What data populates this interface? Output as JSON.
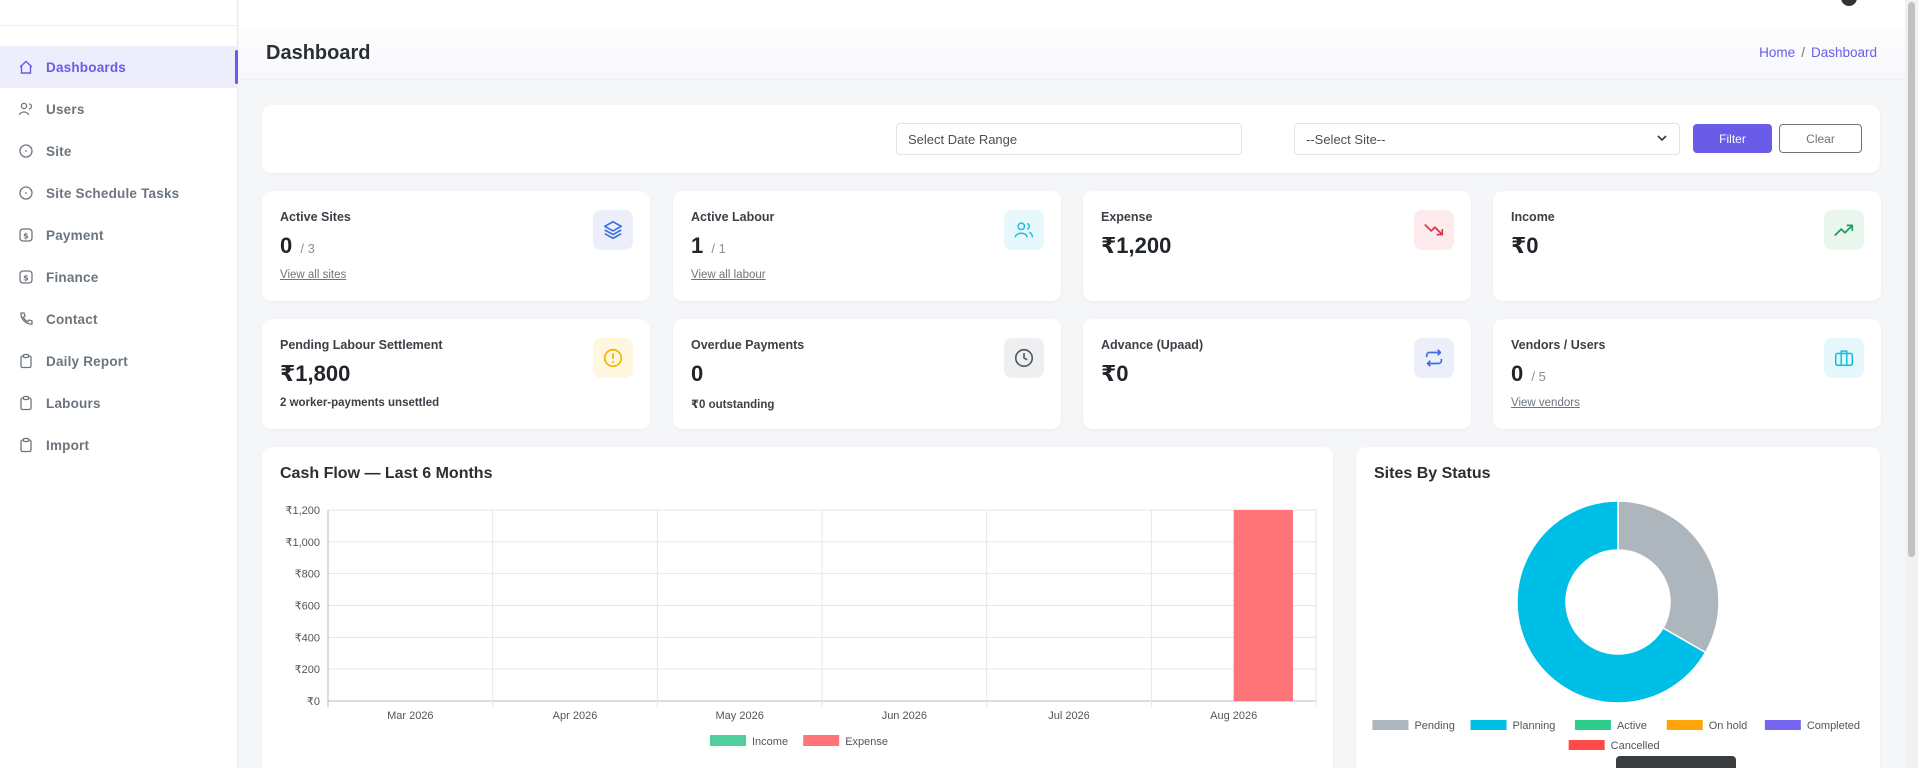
{
  "sidebar": {
    "items": [
      {
        "label": "Dashboards",
        "icon": "home-icon",
        "active": true
      },
      {
        "label": "Users",
        "icon": "users-icon"
      },
      {
        "label": "Site",
        "icon": "circle-icon"
      },
      {
        "label": "Site Schedule Tasks",
        "icon": "circle-icon"
      },
      {
        "label": "Payment",
        "icon": "dollar-icon"
      },
      {
        "label": "Finance",
        "icon": "dollar-icon"
      },
      {
        "label": "Contact",
        "icon": "phone-icon"
      },
      {
        "label": "Daily Report",
        "icon": "clipboard-icon"
      },
      {
        "label": "Labours",
        "icon": "clipboard-icon"
      },
      {
        "label": "Import",
        "icon": "clipboard-icon"
      }
    ]
  },
  "header": {
    "title": "Dashboard",
    "breadcrumb": {
      "home": "Home",
      "separator": "/",
      "current": "Dashboard"
    }
  },
  "filters": {
    "date_placeholder": "Select Date Range",
    "site_selected": "--Select Site--",
    "filter_label": "Filter",
    "clear_label": "Clear"
  },
  "stats": [
    {
      "label": "Active Sites",
      "value": "0",
      "of": "/ 3",
      "link": "View all sites",
      "icon": "layers-icon",
      "accent": "#3d6fdb",
      "bg": "#eceefa"
    },
    {
      "label": "Active Labour",
      "value": "1",
      "of": "/ 1",
      "link": "View all labour",
      "icon": "people-icon",
      "accent": "#1bbfe0",
      "bg": "#e6f8fc"
    },
    {
      "label": "Expense",
      "value": "₹1,200",
      "icon": "trending-down-icon",
      "accent": "#e0344b",
      "bg": "#fdeaec"
    },
    {
      "label": "Income",
      "value": "₹0",
      "icon": "trending-up-icon",
      "accent": "#1e9a5c",
      "bg": "#e8f6ee"
    },
    {
      "label": "Pending Labour Settlement",
      "value": "₹1,800",
      "sub": "2 worker-payments unsettled",
      "icon": "alert-circle-icon",
      "accent": "#f0b400",
      "bg": "#fff6e0"
    },
    {
      "label": "Overdue Payments",
      "value": "0",
      "sub": "₹0 outstanding",
      "icon": "clock-icon",
      "accent": "#555b61",
      "bg": "#eeeff1"
    },
    {
      "label": "Advance (Upaad)",
      "value": "₹0",
      "icon": "repeat-icon",
      "accent": "#3d6fdb",
      "bg": "#eceefa"
    },
    {
      "label": "Vendors / Users",
      "value": "0",
      "of": "/ 5",
      "link": "View vendors",
      "icon": "briefcase-icon",
      "accent": "#1bbfe0",
      "bg": "#e6f8fc"
    }
  ],
  "charts": {
    "cash_flow_title": "Cash Flow — Last 6 Months",
    "status_title": "Sites By Status"
  },
  "chart_data": [
    {
      "type": "bar",
      "title": "Cash Flow — Last 6 Months",
      "categories": [
        "Mar 2026",
        "Apr 2026",
        "May 2026",
        "Jun 2026",
        "Jul 2026",
        "Aug 2026"
      ],
      "series": [
        {
          "name": "Income",
          "values": [
            0,
            0,
            0,
            0,
            0,
            0
          ],
          "color": "#4fcf9e"
        },
        {
          "name": "Expense",
          "values": [
            0,
            0,
            0,
            0,
            0,
            1200
          ],
          "color": "#ff7478"
        }
      ],
      "ylim": [
        0,
        1200
      ],
      "yticks": [
        "₹0",
        "₹200",
        "₹400",
        "₹600",
        "₹800",
        "₹1,000",
        "₹1,200"
      ],
      "ytick_values": [
        0,
        200,
        400,
        600,
        800,
        1000,
        1200
      ],
      "grid": true,
      "legend": "bottom"
    },
    {
      "type": "pie",
      "title": "Sites By Status",
      "labels": [
        "Pending",
        "Planning",
        "Active",
        "On hold",
        "Completed",
        "Cancelled"
      ],
      "values": [
        1,
        2,
        0,
        0,
        0,
        0
      ],
      "colors": [
        "#adb5bd",
        "#00bfe6",
        "#2ecc8a",
        "#ffa50a",
        "#7565f0",
        "#ff4a4a"
      ],
      "donut": true,
      "legend": "bottom"
    }
  ]
}
